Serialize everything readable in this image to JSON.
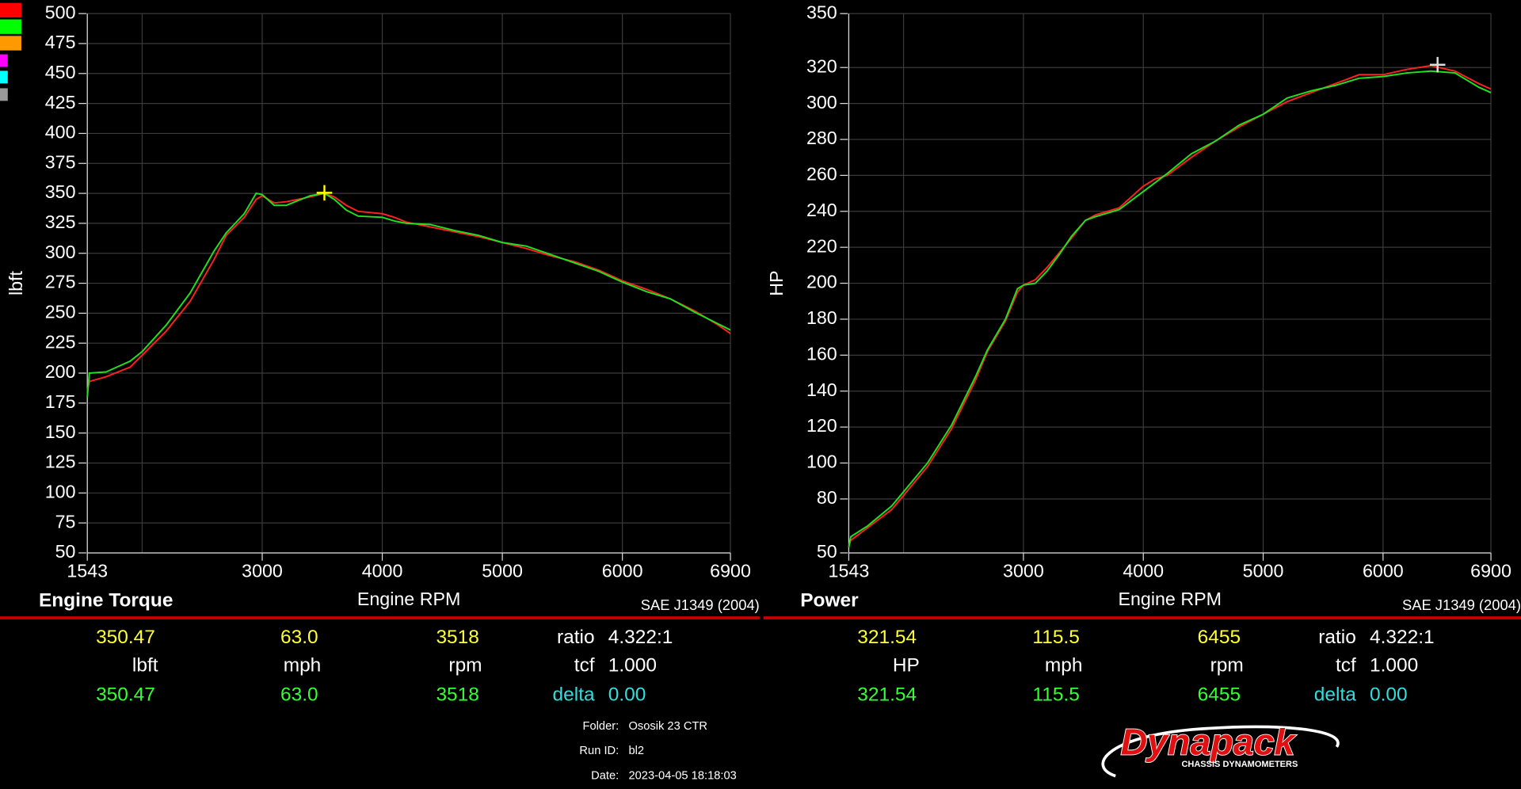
{
  "swatches": [
    "#ff0000",
    "#00ff00",
    "#ff9900",
    "#ff00ff",
    "#00ffff",
    "#999999"
  ],
  "chart_data": [
    {
      "type": "line",
      "title": "Engine Torque",
      "xlabel": "Engine RPM",
      "ylabel": "lbft",
      "standard": "SAE J1349 (2004)",
      "x": [
        1543,
        1560,
        1700,
        1900,
        2000,
        2200,
        2400,
        2600,
        2700,
        2850,
        2950,
        3000,
        3100,
        3200,
        3300,
        3400,
        3518,
        3600,
        3700,
        3800,
        4000,
        4100,
        4200,
        4400,
        4600,
        4800,
        5000,
        5200,
        5400,
        5600,
        5800,
        6000,
        6200,
        6400,
        6600,
        6800,
        6900
      ],
      "xlim": [
        1543,
        6900
      ],
      "xticks": [
        1543,
        3000,
        4000,
        5000,
        6000,
        6900
      ],
      "minor_xticks": [
        2000
      ],
      "ylim": [
        50,
        500
      ],
      "yticks": [
        50,
        75,
        100,
        125,
        150,
        175,
        200,
        225,
        250,
        275,
        300,
        325,
        350,
        375,
        400,
        425,
        450,
        475,
        500
      ],
      "grid": true,
      "series": [
        {
          "color": "#ff2020",
          "values": [
            185,
            193,
            197,
            205,
            215,
            235,
            260,
            295,
            315,
            330,
            345,
            348,
            342,
            343,
            345,
            347,
            350,
            347,
            340,
            335,
            333,
            330,
            326,
            322,
            318,
            314,
            309,
            304,
            298,
            293,
            286,
            277,
            270,
            262,
            252,
            240,
            233
          ]
        },
        {
          "color": "#20e020",
          "values": [
            180,
            200,
            201,
            210,
            218,
            240,
            267,
            302,
            317,
            333,
            350,
            349,
            340,
            340,
            344,
            348,
            350,
            345,
            336,
            331,
            330,
            327,
            325,
            324,
            319,
            315,
            309,
            306,
            299,
            292,
            285,
            276,
            268,
            262,
            251,
            241,
            236
          ]
        }
      ],
      "cursor_color": "#ffff00",
      "readout": {
        "run1": [
          350.47,
          {
            "value": 63,
            "label": "63.0"
          },
          3518
        ],
        "units": [
          "lbft",
          "mph",
          "rpm"
        ],
        "run2": [
          350.47,
          {
            "value": 63,
            "label": "63.0"
          },
          3518
        ],
        "ratio_label": "ratio",
        "ratio": "4.322:1",
        "tcf_label": "tcf",
        "tcf": {
          "value": 1,
          "label": "1.000"
        },
        "delta_label": "delta",
        "delta": {
          "value": 0,
          "label": "0.00"
        }
      }
    },
    {
      "type": "line",
      "title": "Power",
      "xlabel": "Engine RPM",
      "ylabel": "HP",
      "standard": "SAE J1349 (2004)",
      "x": [
        1543,
        1560,
        1700,
        1900,
        2000,
        2200,
        2400,
        2600,
        2700,
        2850,
        2950,
        3000,
        3100,
        3200,
        3300,
        3400,
        3518,
        3600,
        3700,
        3800,
        4000,
        4100,
        4200,
        4400,
        4600,
        4800,
        5000,
        5200,
        5400,
        5600,
        5800,
        6000,
        6200,
        6400,
        6600,
        6800,
        6900
      ],
      "xlim": [
        1543,
        6900
      ],
      "xticks": [
        1543,
        3000,
        4000,
        5000,
        6000,
        6900
      ],
      "minor_xticks": [
        2000
      ],
      "ylim": [
        50,
        350
      ],
      "yticks": [
        50,
        80,
        100,
        120,
        140,
        160,
        180,
        200,
        220,
        240,
        260,
        280,
        300,
        320,
        350
      ],
      "grid": true,
      "series": [
        {
          "color": "#ff2020",
          "values": [
            54,
            57,
            64,
            74,
            82,
            98,
            119,
            146,
            162,
            179,
            195,
            199,
            202,
            209,
            217,
            225,
            235,
            238,
            240,
            242,
            254,
            258,
            260,
            270,
            279,
            287,
            294,
            301,
            306,
            311,
            316,
            316,
            319,
            321,
            318,
            311,
            308
          ]
        },
        {
          "color": "#20e020",
          "values": [
            53,
            59,
            65,
            76,
            84,
            100,
            121,
            148,
            163,
            180,
            197,
            199,
            200,
            207,
            216,
            226,
            235,
            237,
            239,
            241,
            251,
            256,
            261,
            272,
            279,
            288,
            294,
            303,
            307,
            310,
            314,
            315,
            317,
            318,
            317,
            309,
            306
          ]
        }
      ],
      "cursor_color": "#dddddd",
      "readout": {
        "run1": [
          321.54,
          115.5,
          6455
        ],
        "units": [
          "HP",
          "mph",
          "rpm"
        ],
        "run2": [
          321.54,
          115.5,
          6455
        ],
        "ratio_label": "ratio",
        "ratio": "4.322:1",
        "tcf_label": "tcf",
        "tcf": {
          "value": 1,
          "label": "1.000"
        },
        "delta_label": "delta",
        "delta": {
          "value": 0,
          "label": "0.00"
        }
      }
    }
  ],
  "run_info": [
    {
      "label": "Folder:",
      "value": "Ososik 23 CTR"
    },
    {
      "label": "Run ID:",
      "value": "bl2"
    },
    {
      "label": "Date:",
      "value": "2023-04-05 18:18:03"
    }
  ],
  "logo": {
    "name": "Dynapack",
    "tagline": "CHASSIS DYNAMOMETERS"
  }
}
